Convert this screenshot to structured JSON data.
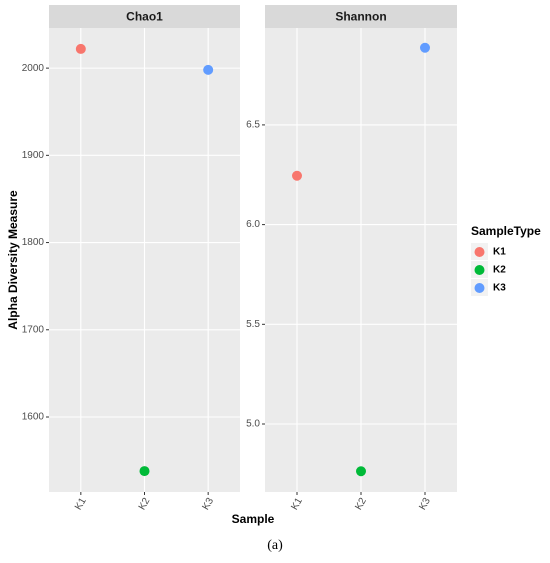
{
  "chart_data": [
    {
      "type": "scatter",
      "title": "Chao1",
      "categories": [
        "K1",
        "K2",
        "K3"
      ],
      "values": [
        2022,
        1538,
        1998
      ],
      "ylim": [
        1514,
        2046
      ],
      "yticks": [
        1600,
        1700,
        1800,
        1900,
        2000
      ],
      "grid": true
    },
    {
      "type": "scatter",
      "title": "Shannon",
      "categories": [
        "K1",
        "K2",
        "K3"
      ],
      "values": [
        6.245,
        4.763,
        6.887
      ],
      "ylim": [
        4.659,
        6.986
      ],
      "yticks": [
        {
          "value": 5,
          "label": "5.0"
        },
        5.5,
        {
          "value": 6,
          "label": "6.0"
        },
        6.5
      ],
      "grid": true
    }
  ],
  "x_label": "Sample",
  "y_label": "Alpha Diversity Measure",
  "legend": {
    "title": "SampleType",
    "items": [
      {
        "name": "K1",
        "color": "#F8766D"
      },
      {
        "name": "K2",
        "color": "#00BA38"
      },
      {
        "name": "K3",
        "color": "#619CFF"
      }
    ]
  },
  "caption": "(a)"
}
